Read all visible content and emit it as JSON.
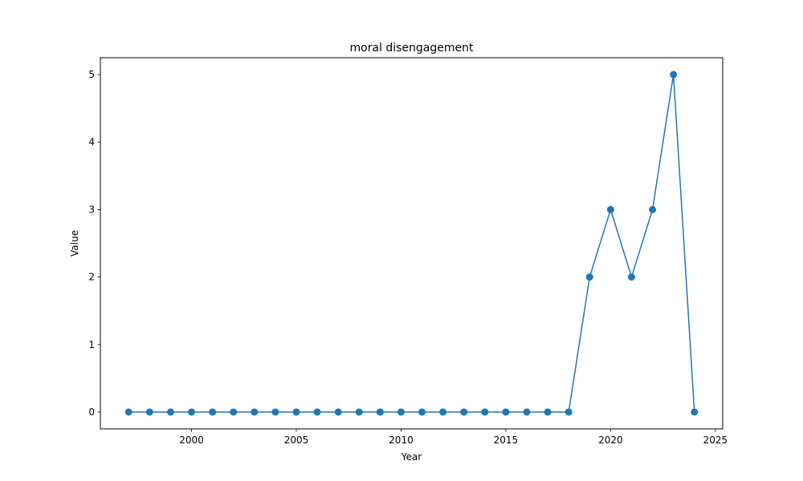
{
  "chart_data": {
    "type": "line",
    "title": "moral disengagement",
    "xlabel": "Year",
    "ylabel": "Value",
    "x": [
      1997,
      1998,
      1999,
      2000,
      2001,
      2002,
      2003,
      2004,
      2005,
      2006,
      2007,
      2008,
      2009,
      2010,
      2011,
      2012,
      2013,
      2014,
      2015,
      2016,
      2017,
      2018,
      2019,
      2020,
      2021,
      2022,
      2023,
      2024
    ],
    "series": [
      {
        "values": [
          0,
          0,
          0,
          0,
          0,
          0,
          0,
          0,
          0,
          0,
          0,
          0,
          0,
          0,
          0,
          0,
          0,
          0,
          0,
          0,
          0,
          0,
          2,
          3,
          2,
          3,
          5,
          0
        ],
        "color": "#1f77b4",
        "marker": "circle"
      }
    ],
    "xlim": [
      1995.65,
      2025.35
    ],
    "ylim": [
      -0.25,
      5.25
    ],
    "xticks": [
      2000,
      2005,
      2010,
      2015,
      2020,
      2025
    ],
    "yticks": [
      0,
      1,
      2,
      3,
      4,
      5
    ],
    "grid": false,
    "legend": false
  }
}
